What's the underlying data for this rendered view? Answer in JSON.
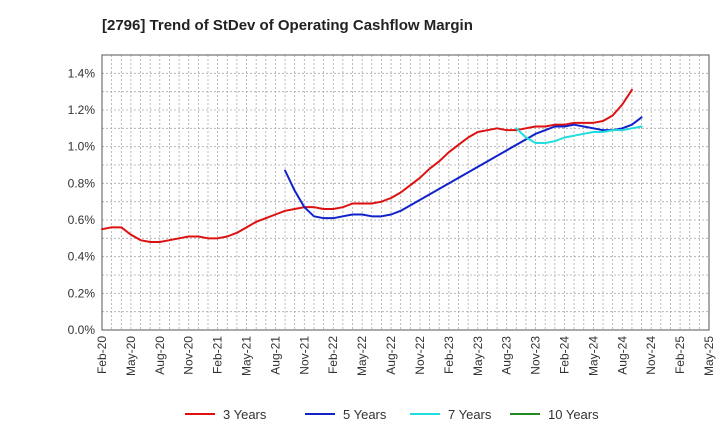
{
  "chart_data": {
    "type": "line",
    "title": "[2796]  Trend of StDev of Operating Cashflow Margin",
    "xlabel": "",
    "ylabel": "",
    "x_ticks": [
      "Feb-20",
      "May-20",
      "Aug-20",
      "Nov-20",
      "Feb-21",
      "May-21",
      "Aug-21",
      "Nov-21",
      "Feb-22",
      "May-22",
      "Aug-22",
      "Nov-22",
      "Feb-23",
      "May-23",
      "Aug-23",
      "Nov-23",
      "Feb-24",
      "May-24",
      "Aug-24",
      "Nov-24",
      "Feb-25",
      "May-25"
    ],
    "y_ticks": [
      "0.0%",
      "0.2%",
      "0.4%",
      "0.6%",
      "0.8%",
      "1.0%",
      "1.2%",
      "1.4%"
    ],
    "ylim": [
      0,
      1.5
    ],
    "grid": true,
    "legend_position": "bottom",
    "series": [
      {
        "name": "3 Years",
        "color": "#dd1111",
        "start_index": 0,
        "values": [
          0.55,
          0.56,
          0.56,
          0.52,
          0.49,
          0.48,
          0.48,
          0.49,
          0.5,
          0.51,
          0.51,
          0.5,
          0.5,
          0.51,
          0.53,
          0.56,
          0.59,
          0.61,
          0.63,
          0.65,
          0.66,
          0.67,
          0.67,
          0.66,
          0.66,
          0.67,
          0.69,
          0.69,
          0.69,
          0.7,
          0.72,
          0.75,
          0.79,
          0.83,
          0.88,
          0.92,
          0.97,
          1.01,
          1.05,
          1.08,
          1.09,
          1.1,
          1.09,
          1.09,
          1.1,
          1.11,
          1.11,
          1.12,
          1.12,
          1.13,
          1.13,
          1.13,
          1.14,
          1.17,
          1.23,
          1.31
        ]
      },
      {
        "name": "5 Years",
        "color": "#1122cc",
        "start_index": 19,
        "values": [
          0.87,
          0.76,
          0.67,
          0.62,
          0.61,
          0.61,
          0.62,
          0.63,
          0.63,
          0.62,
          0.62,
          0.63,
          0.65,
          0.68,
          0.71,
          0.74,
          0.77,
          0.8,
          0.83,
          0.86,
          0.89,
          0.92,
          0.95,
          0.98,
          1.01,
          1.04,
          1.07,
          1.09,
          1.11,
          1.11,
          1.12,
          1.11,
          1.1,
          1.09,
          1.09,
          1.1,
          1.12,
          1.16
        ]
      },
      {
        "name": "7 Years",
        "color": "#22dddd",
        "start_index": 43,
        "values": [
          1.1,
          1.05,
          1.02,
          1.02,
          1.03,
          1.05,
          1.06,
          1.07,
          1.08,
          1.08,
          1.09,
          1.09,
          1.1,
          1.11
        ]
      },
      {
        "name": "10 Years",
        "color": "#228822",
        "start_index": 0,
        "values": []
      }
    ]
  }
}
